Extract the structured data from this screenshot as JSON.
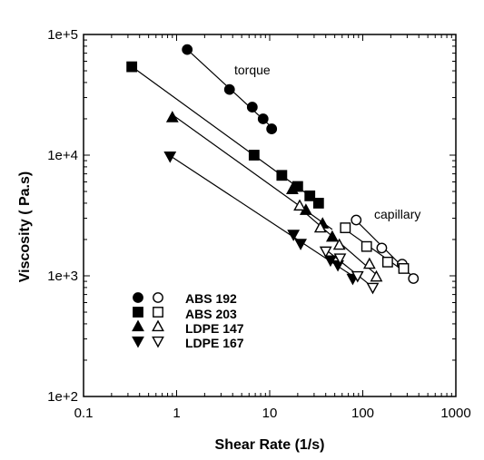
{
  "chart_data": {
    "type": "scatter",
    "xlabel": "Shear Rate (1/s)",
    "ylabel": "Viscosity ( Pa.s)",
    "x_scale": "log",
    "y_scale": "log",
    "xlim": [
      0.1,
      1000
    ],
    "ylim": [
      100,
      100000
    ],
    "x_ticks": [
      "0.1",
      "1",
      "10",
      "100",
      "1000"
    ],
    "y_ticks": [
      "1e+2",
      "1e+3",
      "1e+4",
      "1e+5"
    ],
    "annotations": [
      "torque",
      "capillary"
    ],
    "legend_position": "lower-left",
    "series": [
      {
        "name": "ABS 192",
        "torque": {
          "x": [
            1.3,
            3.7,
            6.5,
            8.5,
            10.5
          ],
          "y": [
            75000,
            35000,
            25000,
            20000,
            16500
          ]
        },
        "capillary": {
          "x": [
            85,
            160,
            265,
            350
          ],
          "y": [
            2900,
            1700,
            1250,
            950
          ]
        }
      },
      {
        "name": "ABS 203",
        "torque": {
          "x": [
            0.33,
            6.8,
            13.5,
            20,
            27,
            33.5
          ],
          "y": [
            54000,
            10000,
            6800,
            5500,
            4600,
            4000
          ]
        },
        "capillary": {
          "x": [
            65,
            110,
            185,
            275
          ],
          "y": [
            2500,
            1750,
            1300,
            1150
          ]
        }
      },
      {
        "name": "LDPE 147",
        "torque": {
          "x": [
            0.9,
            17.5,
            24.5,
            37,
            47
          ],
          "y": [
            20500,
            5200,
            3500,
            2700,
            2100
          ]
        },
        "capillary": {
          "x": [
            21,
            35,
            56,
            118,
            140
          ],
          "y": [
            3800,
            2500,
            1800,
            1250,
            980
          ]
        }
      },
      {
        "name": "LDPE 167",
        "torque": {
          "x": [
            0.85,
            18,
            21.5,
            45,
            54,
            78
          ],
          "y": [
            9800,
            2200,
            1850,
            1350,
            1230,
            950
          ]
        },
        "capillary": {
          "x": [
            40,
            57,
            88,
            128
          ],
          "y": [
            1600,
            1400,
            1000,
            800
          ]
        }
      }
    ],
    "grid": false
  }
}
